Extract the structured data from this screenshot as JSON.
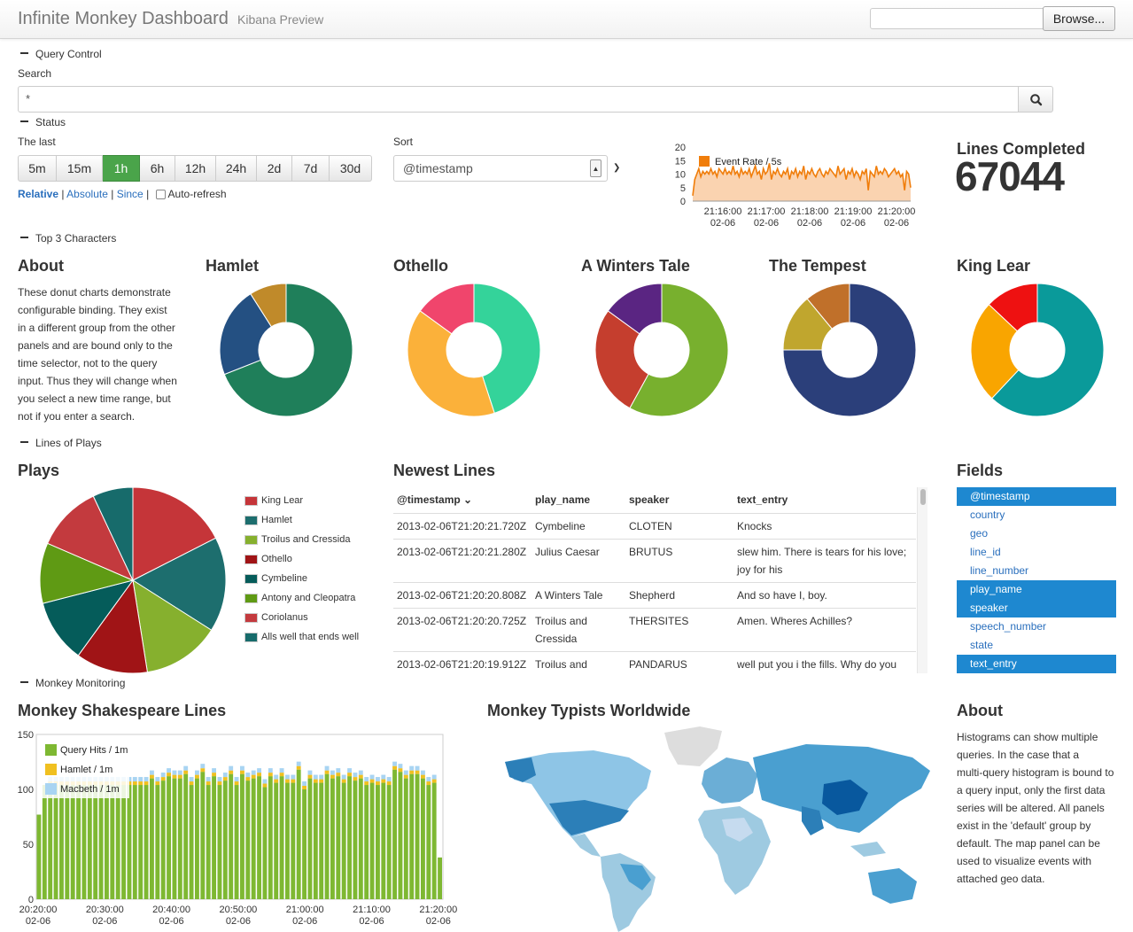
{
  "header": {
    "title": "Infinite Monkey Dashboard",
    "subtitle": "Kibana Preview",
    "browse": "Browse..."
  },
  "sections": {
    "query": "Query Control",
    "status": "Status",
    "top3": "Top 3 Characters",
    "lines": "Lines of Plays",
    "monitoring": "Monkey Monitoring"
  },
  "query": {
    "label": "Search",
    "value": "*"
  },
  "time": {
    "label": "The last",
    "buttons": [
      "5m",
      "15m",
      "1h",
      "6h",
      "12h",
      "24h",
      "2d",
      "7d",
      "30d"
    ],
    "active": "1h",
    "relative": "Relative",
    "absolute": "Absolute",
    "since": "Since",
    "autorefresh": "Auto-refresh",
    "sep": "|"
  },
  "sort": {
    "label": "Sort",
    "value": "@timestamp"
  },
  "event_rate": {
    "legend": "Event Rate / 5s",
    "yticks": [
      "20",
      "15",
      "10",
      "5",
      "0"
    ],
    "xticks": [
      [
        "21:16:00",
        "02-06"
      ],
      [
        "21:17:00",
        "02-06"
      ],
      [
        "21:18:00",
        "02-06"
      ],
      [
        "21:19:00",
        "02-06"
      ],
      [
        "21:20:00",
        "02-06"
      ]
    ],
    "values": [
      2,
      8,
      10,
      12,
      9,
      11,
      10,
      11,
      10,
      12,
      10,
      11,
      9,
      12,
      11,
      10,
      12,
      10,
      11,
      10,
      13,
      10,
      11,
      9,
      12,
      10,
      11,
      10,
      12,
      9,
      11,
      13,
      10,
      11,
      8,
      12,
      10,
      11,
      14,
      8,
      11,
      10,
      12,
      10,
      9,
      11,
      10,
      12,
      8,
      11,
      10,
      12,
      9,
      11,
      10,
      13,
      8,
      11,
      10,
      12,
      10,
      9,
      11,
      12,
      10,
      9,
      11,
      10,
      12,
      11,
      10,
      9,
      13,
      10,
      11,
      12,
      8,
      11,
      10,
      12,
      9,
      11,
      10,
      8,
      11,
      10,
      12,
      4,
      11,
      10,
      9,
      13,
      10,
      11,
      10,
      12,
      11,
      9,
      10,
      11,
      12,
      10,
      11,
      9,
      10,
      4,
      11,
      10,
      5
    ],
    "color": "#f07d0a"
  },
  "lines_completed": {
    "label": "Lines Completed",
    "value": "67044"
  },
  "about1": {
    "title": "About",
    "text": [
      "These donut charts demonstrate",
      "configurable binding. They exist",
      "in a different group from the other",
      "panels and are bound only to the",
      "time selector, not to the query",
      "input. Thus they will change when",
      "you select a new time range, but",
      "not if you enter a search."
    ]
  },
  "donuts": [
    {
      "title": "Hamlet",
      "slices": [
        {
          "v": 69,
          "c": "#1f7f5a"
        },
        {
          "v": 22,
          "c": "#245082"
        },
        {
          "v": 9,
          "c": "#c08a2a"
        }
      ]
    },
    {
      "title": "Othello",
      "slices": [
        {
          "v": 45,
          "c": "#34d39a"
        },
        {
          "v": 40,
          "c": "#fbb13a"
        },
        {
          "v": 15,
          "c": "#f0456c"
        }
      ]
    },
    {
      "title": "A Winters Tale",
      "slices": [
        {
          "v": 58,
          "c": "#78b02e"
        },
        {
          "v": 27,
          "c": "#c53e2e"
        },
        {
          "v": 15,
          "c": "#5a2582"
        }
      ]
    },
    {
      "title": "The Tempest",
      "slices": [
        {
          "v": 75,
          "c": "#2b3f7a"
        },
        {
          "v": 14,
          "c": "#c0a62e"
        },
        {
          "v": 11,
          "c": "#c0702a"
        }
      ]
    },
    {
      "title": "King Lear",
      "slices": [
        {
          "v": 62,
          "c": "#0a9a9a"
        },
        {
          "v": 25,
          "c": "#f9a500"
        },
        {
          "v": 13,
          "c": "#ee1111"
        }
      ]
    }
  ],
  "plays": {
    "title": "Plays",
    "legend": [
      {
        "name": "King Lear",
        "c": "#c53539"
      },
      {
        "name": "Hamlet",
        "c": "#1d6e6e"
      },
      {
        "name": "Troilus and Cressida",
        "c": "#86b02e"
      },
      {
        "name": "Othello",
        "c": "#a01416"
      },
      {
        "name": "Cymbeline",
        "c": "#055c5a"
      },
      {
        "name": "Antony and Cleopatra",
        "c": "#5f9a14"
      },
      {
        "name": "Coriolanus",
        "c": "#c33a3e"
      },
      {
        "name": "Alls well that ends well",
        "c": "#176b6b"
      }
    ],
    "slices": [
      {
        "v": 17.5,
        "c": "#c53539"
      },
      {
        "v": 16.5,
        "c": "#1d6e6e"
      },
      {
        "v": 13.5,
        "c": "#86b02e"
      },
      {
        "v": 12.5,
        "c": "#a01416"
      },
      {
        "v": 11,
        "c": "#055c5a"
      },
      {
        "v": 10.5,
        "c": "#5f9a14"
      },
      {
        "v": 11.5,
        "c": "#c33a3e"
      },
      {
        "v": 7,
        "c": "#176b6b"
      }
    ]
  },
  "newest": {
    "title": "Newest Lines",
    "headers": [
      "@timestamp",
      "play_name",
      "speaker",
      "text_entry"
    ],
    "rows": [
      {
        "ts": "2013-02-06T21:20:21.720Z",
        "play": [
          "Cymbeline"
        ],
        "speaker": "CLOTEN",
        "text": [
          "Knocks"
        ]
      },
      {
        "ts": "2013-02-06T21:20:21.280Z",
        "play": [
          "Julius Caesar"
        ],
        "speaker": "BRUTUS",
        "text": [
          "slew him. There is tears for his love;",
          "joy for his"
        ]
      },
      {
        "ts": "2013-02-06T21:20:20.808Z",
        "play": [
          "A Winters Tale"
        ],
        "speaker": "Shepherd",
        "text": [
          "And so have I, boy."
        ]
      },
      {
        "ts": "2013-02-06T21:20:20.725Z",
        "play": [
          "Troilus and",
          "Cressida"
        ],
        "speaker": "THERSITES",
        "text": [
          "Amen. Wheres Achilles?"
        ]
      },
      {
        "ts": "2013-02-06T21:20:19.912Z",
        "play": [
          "Troilus and"
        ],
        "speaker": "PANDARUS",
        "text": [
          "well put you i the fills. Why do you"
        ]
      }
    ]
  },
  "fields": {
    "title": "Fields",
    "items": [
      {
        "name": "@timestamp",
        "sel": true
      },
      {
        "name": "country",
        "sel": false
      },
      {
        "name": "geo",
        "sel": false
      },
      {
        "name": "line_id",
        "sel": false
      },
      {
        "name": "line_number",
        "sel": false
      },
      {
        "name": "play_name",
        "sel": true
      },
      {
        "name": "speaker",
        "sel": true
      },
      {
        "name": "speech_number",
        "sel": false
      },
      {
        "name": "state",
        "sel": false
      },
      {
        "name": "text_entry",
        "sel": true
      }
    ]
  },
  "histogram": {
    "title": "Monkey Shakespeare Lines",
    "yticks": [
      "150",
      "100",
      "50",
      "0"
    ],
    "xticks": [
      [
        "20:20:00",
        "02-06"
      ],
      [
        "20:30:00",
        "02-06"
      ],
      [
        "20:40:00",
        "02-06"
      ],
      [
        "20:50:00",
        "02-06"
      ],
      [
        "21:00:00",
        "02-06"
      ],
      [
        "21:10:00",
        "02-06"
      ],
      [
        "21:20:00",
        "02-06"
      ]
    ],
    "legend": [
      {
        "name": "Query Hits / 1m",
        "c": "#7eb832"
      },
      {
        "name": "Hamlet / 1m",
        "c": "#f0c020"
      },
      {
        "name": "Macbeth / 1m",
        "c": "#a8d4f2"
      }
    ],
    "values": [
      77,
      104,
      104,
      104,
      104,
      104,
      104,
      104,
      104,
      104,
      104,
      104,
      104,
      104,
      104,
      104,
      104,
      104,
      104,
      104,
      110,
      104,
      108,
      112,
      110,
      110,
      114,
      104,
      110,
      116,
      104,
      112,
      104,
      108,
      114,
      104,
      114,
      108,
      110,
      112,
      102,
      112,
      106,
      112,
      106,
      106,
      118,
      100,
      110,
      106,
      106,
      114,
      110,
      112,
      106,
      112,
      108,
      110,
      104,
      106,
      104,
      106,
      104,
      118,
      116,
      110,
      114,
      114,
      110,
      104,
      106,
      38
    ]
  },
  "map": {
    "title": "Monkey Typists Worldwide"
  },
  "about2": {
    "title": "About",
    "text": [
      "Histograms can show multiple",
      "queries. In the case that a",
      "multi-query histogram is bound to",
      "a query input, only the first data",
      "series will be altered. All panels",
      "exist in the 'default' group by",
      "default. The map panel can be",
      "used to visualize events with",
      "attached geo data."
    ]
  }
}
